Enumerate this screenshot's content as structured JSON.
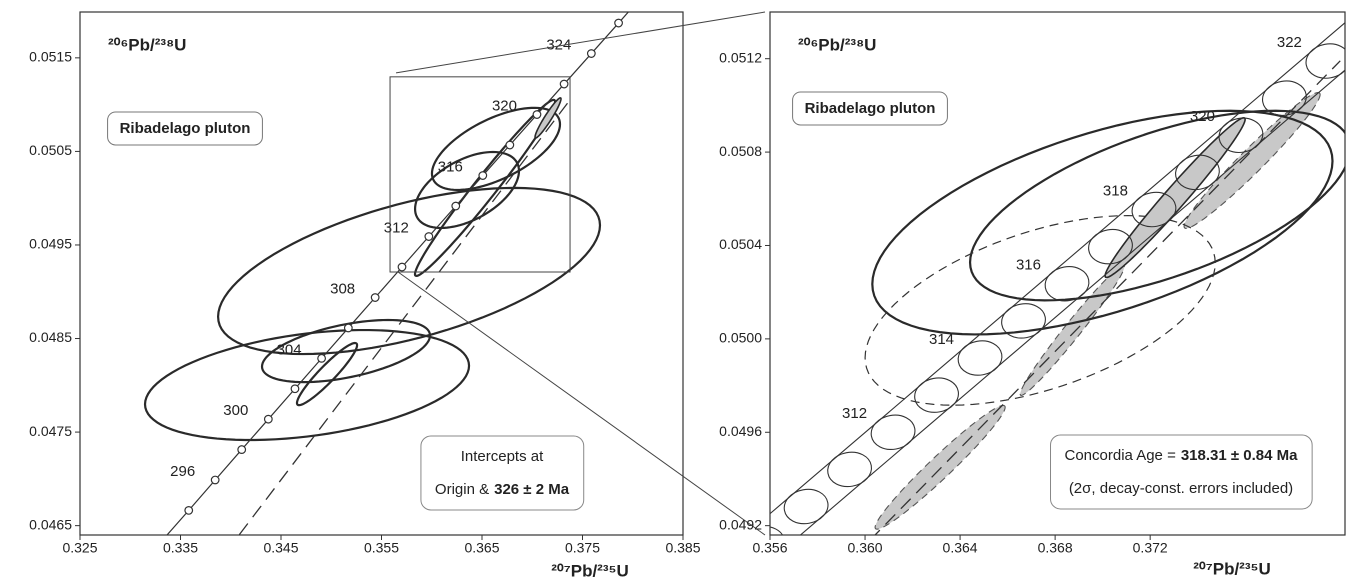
{
  "chart_data": [
    {
      "type": "concordia",
      "ylabel": "²⁰⁶Pb/²³⁸U",
      "xlabel": "²⁰⁷Pb/²³⁵U",
      "label": "Ribadelago pluton",
      "xlim": [
        0.325,
        0.385
      ],
      "ylim": [
        0.0464,
        0.05199
      ],
      "xticks": [
        0.325,
        0.335,
        0.345,
        0.355,
        0.365,
        0.375,
        0.385
      ],
      "yticks": [
        0.0465,
        0.0475,
        0.0485,
        0.0495,
        0.0505,
        0.0515
      ],
      "concordia": {
        "marker": "circle",
        "x": [
          0.33582,
          0.33845,
          0.34109,
          0.34374,
          0.34639,
          0.34904,
          0.3517,
          0.35437,
          0.35704,
          0.35971,
          0.36239,
          0.36508,
          0.36777,
          0.37047,
          0.37317,
          0.37588,
          0.37859
        ],
        "y": [
          0.046663,
          0.046988,
          0.047313,
          0.047638,
          0.047963,
          0.048288,
          0.048613,
          0.048938,
          0.049264,
          0.04959,
          0.049916,
          0.050242,
          0.050568,
          0.050894,
          0.05122,
          0.051546,
          0.051872
        ],
        "age_labels": [
          null,
          296,
          null,
          300,
          null,
          304,
          null,
          308,
          null,
          312,
          null,
          316,
          null,
          320,
          null,
          324,
          null
        ]
      },
      "ellipses": [
        {
          "x": 0.34759,
          "y": 0.048003,
          "sx": 0.01612,
          "sy": 0.000588,
          "rho": 0.35,
          "style": "solid"
        },
        {
          "x": 0.35147,
          "y": 0.048366,
          "sx": 0.00836,
          "sy": 0.000332,
          "rho": 0.5,
          "style": "solid"
        },
        {
          "x": 0.34958,
          "y": 0.04812,
          "sx": 0.00299,
          "sy": 0.000332,
          "rho": 0.93,
          "style": "solid"
        },
        {
          "x": 0.35774,
          "y": 0.049222,
          "sx": 0.019,
          "sy": 0.000888,
          "rho": 0.55,
          "style": "solid"
        },
        {
          "x": 0.36351,
          "y": 0.050088,
          "sx": 0.00517,
          "sy": 0.000406,
          "rho": 0.5,
          "style": "solid"
        },
        {
          "x": 0.36639,
          "y": 0.050527,
          "sx": 0.00637,
          "sy": 0.000439,
          "rho": 0.6,
          "style": "solid"
        },
        {
          "x": 0.3653,
          "y": 0.05011,
          "sx": 0.00697,
          "sy": 0.000941,
          "rho": 0.98,
          "style": "solid"
        },
        {
          "x": 0.37157,
          "y": 0.050858,
          "sx": 0.00129,
          "sy": 0.000214,
          "rho": 0.95,
          "style": "gray"
        }
      ],
      "discordia": {
        "x": [
          0.33953,
          0.37376
        ],
        "y": [
          0.046217,
          0.051051
        ]
      },
      "zoom_box": {
        "xlim": [
          0.35585,
          0.37376
        ],
        "ylim": [
          0.049211,
          0.051297
        ]
      },
      "note": {
        "text1": "Intercepts at",
        "text2": "Origin &",
        "text2_bold": "326 ± 2 Ma"
      }
    },
    {
      "type": "concordia",
      "ylabel": "²⁰⁶Pb/²³⁸U",
      "xlabel": "²⁰⁷Pb/²³⁵U",
      "label": "Ribadelago pluton",
      "xlim": [
        0.356,
        0.3802
      ],
      "ylim": [
        0.04916,
        0.0514
      ],
      "xticks": [
        0.356,
        {
          "value": 0.36,
          "label": "0.360"
        },
        0.364,
        0.368,
        0.372
      ],
      "yticks": [
        0.0492,
        0.0496,
        {
          "value": 0.05,
          "label": "0.0500"
        },
        0.0504,
        0.0508,
        0.0512
      ],
      "concordia": {
        "marker": "ellipse",
        "x": [
          0.35569,
          0.35752,
          0.35935,
          0.36118,
          0.36301,
          0.36484,
          0.36667,
          0.3685,
          0.37033,
          0.37216,
          0.37399,
          0.37582,
          0.37765,
          0.37948
        ],
        "y": [
          0.049123,
          0.049282,
          0.049441,
          0.0496,
          0.049759,
          0.049918,
          0.050077,
          0.050236,
          0.050395,
          0.050554,
          0.050713,
          0.050872,
          0.051031,
          0.05119
        ],
        "age_labels": [
          null,
          null,
          null,
          312,
          null,
          314,
          null,
          316,
          null,
          318,
          null,
          320,
          null,
          322
        ]
      },
      "ellipses": [
        {
          "x": 0.37629,
          "y": 0.050764,
          "sx": 0.002863,
          "sy": 0.000291,
          "rho": 0.97,
          "style": "gray-dashed"
        },
        {
          "x": 0.36872,
          "y": 0.050036,
          "sx": 0.00219,
          "sy": 0.000278,
          "rho": 0.98,
          "style": "gray-dashed"
        },
        {
          "x": 0.36316,
          "y": 0.04945,
          "sx": 0.002737,
          "sy": 0.000265,
          "rho": 0.97,
          "style": "gray-dashed"
        },
        {
          "x": 0.36999,
          "y": 0.050498,
          "sx": 0.009684,
          "sy": 0.000479,
          "rho": 0.55,
          "style": "solid"
        },
        {
          "x": 0.37242,
          "y": 0.050571,
          "sx": 0.008,
          "sy": 0.000406,
          "rho": 0.6,
          "style": "solid"
        },
        {
          "x": 0.36737,
          "y": 0.050122,
          "sx": 0.007368,
          "sy": 0.000406,
          "rho": 0.5,
          "style": "dashed"
        },
        {
          "x": 0.37305,
          "y": 0.050605,
          "sx": 0.002947,
          "sy": 0.000342,
          "rho": 0.98,
          "style": "gray"
        }
      ],
      "discordia": {
        "x": [
          0.36021,
          0.38
        ],
        "y": [
          0.049138,
          0.051191
        ]
      },
      "note": {
        "text1": "Concordia Age =",
        "text1_bold": "318.31 ± 0.84 Ma",
        "text2": "(2σ, decay-const. errors included)"
      }
    }
  ]
}
